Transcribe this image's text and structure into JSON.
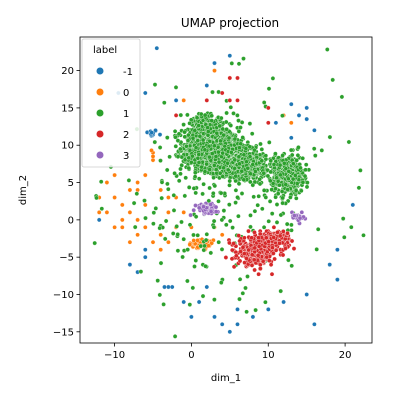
{
  "chart_data": {
    "type": "scatter",
    "title": "UMAP projection",
    "xlabel": "dim_1",
    "ylabel": "dim_2",
    "xlim": [
      -14.5,
      23.5
    ],
    "ylim": [
      -16.5,
      24.5
    ],
    "xticks": [
      -10,
      0,
      10,
      20
    ],
    "yticks": [
      -15,
      -10,
      -5,
      0,
      5,
      10,
      15,
      20
    ],
    "grid": false,
    "legend": {
      "title": "label",
      "placement": "top-left"
    },
    "series": [
      {
        "name": "-1",
        "color": "#1f77b4",
        "clusters": [
          {
            "center": [
              -5.2,
              11.6
            ],
            "spread": [
              0.4,
              0.25
            ],
            "count": 14
          }
        ],
        "points": [
          [
            -4.5,
            23
          ],
          [
            3,
            21
          ],
          [
            5,
            22
          ],
          [
            -9.5,
            17
          ],
          [
            -2,
            16
          ],
          [
            13,
            15.5
          ],
          [
            14,
            14
          ],
          [
            15,
            13.5
          ],
          [
            16,
            12
          ],
          [
            2,
            18
          ],
          [
            -6,
            17
          ],
          [
            -12,
            0
          ],
          [
            -3,
            -9
          ],
          [
            -3.5,
            -9
          ],
          [
            -2.5,
            -9
          ],
          [
            0,
            -13
          ],
          [
            3,
            -13
          ],
          [
            4,
            -14
          ],
          [
            5,
            -15
          ],
          [
            6,
            -12
          ],
          [
            8,
            -13
          ],
          [
            10,
            -12
          ],
          [
            12,
            -11
          ],
          [
            15,
            -10
          ],
          [
            16,
            -14
          ],
          [
            19,
            -8
          ],
          [
            18,
            -6
          ],
          [
            21,
            2
          ],
          [
            19,
            -4
          ],
          [
            15,
            15
          ],
          [
            6,
            -14
          ],
          [
            1,
            -11
          ],
          [
            -1,
            -11
          ],
          [
            2,
            -9
          ],
          [
            -6,
            -4
          ],
          [
            -6,
            -5
          ],
          [
            11,
            13
          ],
          [
            -8,
            -6
          ],
          [
            -7,
            -7
          ],
          [
            13,
            11
          ]
        ]
      },
      {
        "name": "0",
        "color": "#ff7f0e",
        "clusters": [
          {
            "center": [
              1.5,
              -3.3
            ],
            "spread": [
              0.9,
              0.4
            ],
            "count": 55
          }
        ],
        "points": [
          [
            -11,
            1
          ],
          [
            -10,
            3
          ],
          [
            -9,
            -1
          ],
          [
            -8,
            1
          ],
          [
            -7,
            4
          ],
          [
            -6,
            2
          ],
          [
            -7,
            -2
          ],
          [
            -6,
            -1
          ],
          [
            -5,
            -3
          ],
          [
            -4,
            -2
          ],
          [
            -5,
            8
          ],
          [
            -5,
            9
          ],
          [
            -5,
            8.5
          ],
          [
            -5.2,
            9.3
          ],
          [
            -3,
            3
          ],
          [
            -3,
            1
          ],
          [
            -2,
            -1
          ],
          [
            -3,
            -3
          ],
          [
            -8,
            -3
          ],
          [
            -9,
            0
          ],
          [
            -10,
            -1
          ],
          [
            -12,
            3
          ],
          [
            -11,
            5
          ],
          [
            -4,
            4
          ],
          [
            -2,
            3
          ],
          [
            -1,
            1
          ],
          [
            -9,
            2
          ],
          [
            -8,
            4
          ],
          [
            -4,
            -4
          ],
          [
            -7,
            0
          ],
          [
            -1,
            16
          ],
          [
            3,
            20
          ],
          [
            5,
            19
          ],
          [
            3,
            -1
          ],
          [
            4,
            -2
          ],
          [
            0,
            -1
          ],
          [
            -6,
            6
          ],
          [
            -10,
            6
          ],
          [
            -12,
            1
          ],
          [
            -7,
            5
          ],
          [
            13,
            13
          ],
          [
            12,
            14
          ]
        ]
      },
      {
        "name": "1",
        "color": "#2ca02c",
        "clusters": [
          {
            "center": [
              2.5,
              9.8
            ],
            "spread": [
              1.8,
              1.3
            ],
            "count": 900
          },
          {
            "center": [
              4.5,
              8.2
            ],
            "spread": [
              2.0,
              1.1
            ],
            "count": 600
          },
          {
            "center": [
              7.5,
              7.2
            ],
            "spread": [
              1.1,
              0.9
            ],
            "count": 400
          },
          {
            "center": [
              12.5,
              6.0
            ],
            "spread": [
              1.0,
              1.2
            ],
            "count": 500
          },
          {
            "center": [
              1.5,
              13.0
            ],
            "spread": [
              1.0,
              0.6
            ],
            "count": 120
          }
        ],
        "scatter": {
          "center": [
            4,
            3
          ],
          "spread": [
            7.5,
            7
          ],
          "count": 260
        }
      },
      {
        "name": "2",
        "color": "#d62728",
        "clusters": [
          {
            "center": [
              8.5,
              -4.2
            ],
            "spread": [
              1.2,
              0.9
            ],
            "count": 400
          },
          {
            "center": [
              11.0,
              -2.6
            ],
            "spread": [
              0.9,
              0.6
            ],
            "count": 150
          }
        ],
        "points": [
          [
            5,
            19
          ],
          [
            6,
            19
          ],
          [
            -2,
            14
          ],
          [
            2,
            16
          ],
          [
            5,
            16
          ],
          [
            10,
            13
          ],
          [
            10,
            15
          ],
          [
            6,
            16
          ],
          [
            4,
            17
          ]
        ]
      },
      {
        "name": "3",
        "color": "#9467bd",
        "clusters": [
          {
            "center": [
              1.8,
              1.5
            ],
            "spread": [
              0.8,
              0.35
            ],
            "count": 60
          },
          {
            "center": [
              13.8,
              0.5
            ],
            "spread": [
              0.4,
              0.3
            ],
            "count": 25
          }
        ],
        "points": []
      }
    ]
  }
}
